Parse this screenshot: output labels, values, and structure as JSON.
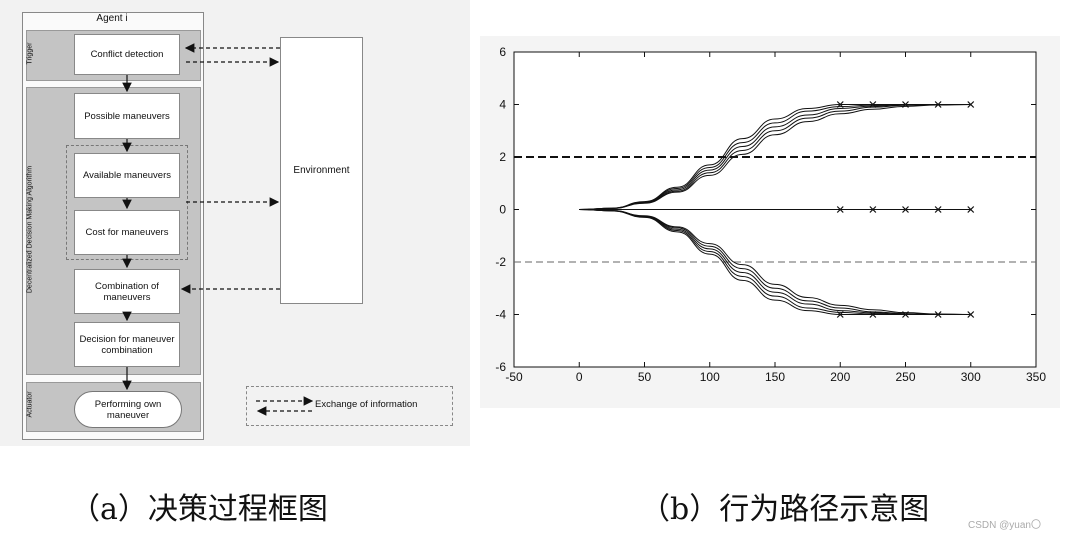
{
  "flowchart": {
    "agent_title": "Agent i",
    "bands": {
      "trigger": "Trigger",
      "algorithm": "Decentralized Decision Making Algorithm",
      "actuator": "Actuator"
    },
    "boxes": {
      "conflict_detection": "Conflict detection",
      "possible_maneuvers": "Possible maneuvers",
      "available_maneuvers": "Available maneuvers",
      "cost_for_maneuvers": "Cost for maneuvers",
      "combination_of_maneuvers": "Combination of maneuvers",
      "decision": "Decision for maneuver combination",
      "performing": "Performing own maneuver"
    },
    "environment": "Environment",
    "legend": "Exchange of information"
  },
  "chart_data": {
    "type": "line",
    "x_ticks": [
      "-50",
      "0",
      "50",
      "100",
      "150",
      "200",
      "250",
      "300",
      "350"
    ],
    "y_ticks": [
      "6",
      "4",
      "2",
      "0",
      "-2",
      "-4",
      "-6"
    ],
    "xlim": [
      -50,
      350
    ],
    "ylim": [
      -6,
      6
    ],
    "series": [
      {
        "values": [
          [
            0,
            0
          ],
          [
            25,
            0.05
          ],
          [
            50,
            0.3
          ],
          [
            75,
            0.85
          ],
          [
            100,
            1.7
          ],
          [
            125,
            2.7
          ],
          [
            150,
            3.45
          ],
          [
            175,
            3.85
          ],
          [
            200,
            4
          ],
          [
            300,
            4
          ]
        ]
      },
      {
        "values": [
          [
            0,
            0
          ],
          [
            25,
            0.05
          ],
          [
            50,
            0.28
          ],
          [
            75,
            0.8
          ],
          [
            100,
            1.6
          ],
          [
            125,
            2.55
          ],
          [
            150,
            3.3
          ],
          [
            175,
            3.75
          ],
          [
            200,
            3.92
          ],
          [
            225,
            3.98
          ],
          [
            300,
            4
          ]
        ]
      },
      {
        "values": [
          [
            0,
            0
          ],
          [
            25,
            0.05
          ],
          [
            50,
            0.26
          ],
          [
            75,
            0.75
          ],
          [
            100,
            1.5
          ],
          [
            125,
            2.4
          ],
          [
            150,
            3.15
          ],
          [
            175,
            3.6
          ],
          [
            200,
            3.85
          ],
          [
            225,
            3.94
          ],
          [
            250,
            3.99
          ],
          [
            300,
            4
          ]
        ]
      },
      {
        "values": [
          [
            0,
            0
          ],
          [
            25,
            0.04
          ],
          [
            50,
            0.25
          ],
          [
            75,
            0.7
          ],
          [
            100,
            1.4
          ],
          [
            125,
            2.25
          ],
          [
            150,
            3.0
          ],
          [
            175,
            3.48
          ],
          [
            200,
            3.75
          ],
          [
            225,
            3.9
          ],
          [
            250,
            3.97
          ],
          [
            275,
            4
          ],
          [
            300,
            4
          ]
        ]
      },
      {
        "values": [
          [
            0,
            0
          ],
          [
            25,
            0.04
          ],
          [
            50,
            0.24
          ],
          [
            75,
            0.66
          ],
          [
            100,
            1.3
          ],
          [
            125,
            2.1
          ],
          [
            150,
            2.85
          ],
          [
            175,
            3.35
          ],
          [
            200,
            3.65
          ],
          [
            225,
            3.82
          ],
          [
            250,
            3.93
          ],
          [
            275,
            3.98
          ],
          [
            300,
            4
          ]
        ]
      },
      {
        "values": [
          [
            0,
            0
          ],
          [
            25,
            -0.05
          ],
          [
            50,
            -0.3
          ],
          [
            75,
            -0.85
          ],
          [
            100,
            -1.7
          ],
          [
            125,
            -2.7
          ],
          [
            150,
            -3.45
          ],
          [
            175,
            -3.85
          ],
          [
            200,
            -4
          ],
          [
            300,
            -4
          ]
        ]
      },
      {
        "values": [
          [
            0,
            0
          ],
          [
            25,
            -0.05
          ],
          [
            50,
            -0.28
          ],
          [
            75,
            -0.8
          ],
          [
            100,
            -1.6
          ],
          [
            125,
            -2.55
          ],
          [
            150,
            -3.3
          ],
          [
            175,
            -3.75
          ],
          [
            200,
            -3.92
          ],
          [
            225,
            -3.98
          ],
          [
            300,
            -4
          ]
        ]
      },
      {
        "values": [
          [
            0,
            0
          ],
          [
            25,
            -0.05
          ],
          [
            50,
            -0.26
          ],
          [
            75,
            -0.75
          ],
          [
            100,
            -1.5
          ],
          [
            125,
            -2.4
          ],
          [
            150,
            -3.15
          ],
          [
            175,
            -3.6
          ],
          [
            200,
            -3.85
          ],
          [
            225,
            -3.94
          ],
          [
            250,
            -3.99
          ],
          [
            300,
            -4
          ]
        ]
      },
      {
        "values": [
          [
            0,
            0
          ],
          [
            25,
            -0.04
          ],
          [
            50,
            -0.25
          ],
          [
            75,
            -0.7
          ],
          [
            100,
            -1.4
          ],
          [
            125,
            -2.25
          ],
          [
            150,
            -3.0
          ],
          [
            175,
            -3.48
          ],
          [
            200,
            -3.75
          ],
          [
            225,
            -3.9
          ],
          [
            250,
            -3.97
          ],
          [
            275,
            -4
          ],
          [
            300,
            -4
          ]
        ]
      },
      {
        "values": [
          [
            0,
            0
          ],
          [
            25,
            -0.04
          ],
          [
            50,
            -0.24
          ],
          [
            75,
            -0.66
          ],
          [
            100,
            -1.3
          ],
          [
            125,
            -2.1
          ],
          [
            150,
            -2.85
          ],
          [
            175,
            -3.35
          ],
          [
            200,
            -3.65
          ],
          [
            225,
            -3.82
          ],
          [
            250,
            -3.93
          ],
          [
            275,
            -3.98
          ],
          [
            300,
            -4
          ]
        ]
      },
      {
        "values": [
          [
            0,
            0
          ],
          [
            300,
            0
          ]
        ]
      }
    ],
    "markers": [
      [
        200,
        4
      ],
      [
        225,
        4
      ],
      [
        250,
        4
      ],
      [
        275,
        4
      ],
      [
        300,
        4
      ],
      [
        200,
        0
      ],
      [
        225,
        0
      ],
      [
        250,
        0
      ],
      [
        275,
        0
      ],
      [
        300,
        0
      ],
      [
        200,
        -4
      ],
      [
        225,
        -4
      ],
      [
        250,
        -4
      ],
      [
        275,
        -4
      ],
      [
        300,
        -4
      ]
    ],
    "hlines": [
      {
        "y": 2,
        "style": "thick-dashed"
      },
      {
        "y": -2,
        "style": "thin-dashed"
      }
    ]
  },
  "captions": {
    "a": "（a）决策过程框图",
    "b": "（b）行为路径示意图"
  },
  "watermark": "CSDN @yuan〇"
}
